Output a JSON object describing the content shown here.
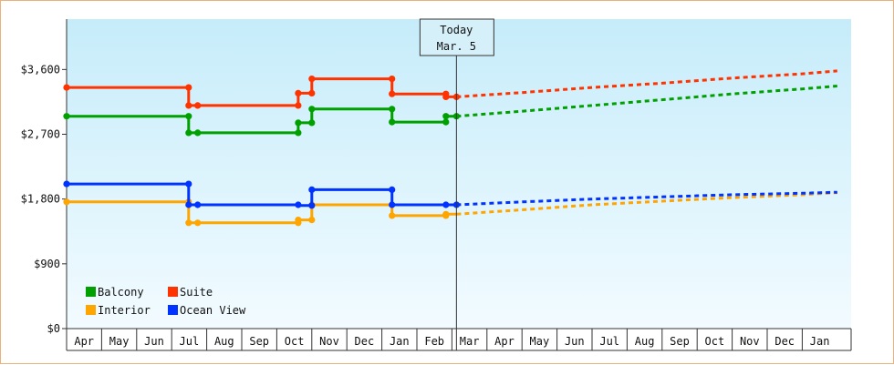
{
  "chart_data": {
    "type": "line",
    "title": "",
    "xlabel": "",
    "ylabel": "",
    "ylim": [
      0,
      4300
    ],
    "yticks": [
      0,
      900,
      1800,
      2700,
      3600
    ],
    "ytick_labels": [
      "$0",
      "$900",
      "$1,800",
      "$2,700",
      "$3,600"
    ],
    "x_start": "2023-04-01",
    "x_end": "2025-02-01",
    "month_labels": [
      "Apr",
      "May",
      "Jun",
      "Jul",
      "Aug",
      "Sep",
      "Oct",
      "Nov",
      "Dec",
      "Jan",
      "Feb",
      "Mar",
      "Apr",
      "May",
      "Jun",
      "Jul",
      "Aug",
      "Sep",
      "Oct",
      "Nov",
      "Dec",
      "Jan"
    ],
    "today": {
      "label_line1": "Today",
      "label_line2": "Mar. 5",
      "date": "2024-03-05"
    },
    "legend_position": "bottom-left",
    "background": "light sky-blue gradient",
    "series": [
      {
        "name": "Balcony",
        "color": "#00a000",
        "history": [
          [
            "2023-04-01",
            2950
          ],
          [
            "2023-07-16",
            2950
          ],
          [
            "2023-07-16",
            2720
          ],
          [
            "2023-07-24",
            2720
          ],
          [
            "2023-10-20",
            2720
          ],
          [
            "2023-10-20",
            2860
          ],
          [
            "2023-11-01",
            2860
          ],
          [
            "2023-11-01",
            3050
          ],
          [
            "2024-01-10",
            3050
          ],
          [
            "2024-01-10",
            2870
          ],
          [
            "2024-02-25",
            2870
          ],
          [
            "2024-02-25",
            2950
          ],
          [
            "2024-03-05",
            2950
          ]
        ],
        "markers": [
          [
            "2023-04-01",
            2950
          ],
          [
            "2023-07-16",
            2950
          ],
          [
            "2023-07-16",
            2720
          ],
          [
            "2023-07-24",
            2720
          ],
          [
            "2023-10-20",
            2720
          ],
          [
            "2023-10-20",
            2860
          ],
          [
            "2023-11-01",
            2860
          ],
          [
            "2023-11-01",
            3050
          ],
          [
            "2024-01-10",
            3050
          ],
          [
            "2024-01-10",
            2870
          ],
          [
            "2024-02-25",
            2870
          ],
          [
            "2024-02-25",
            2950
          ],
          [
            "2024-03-05",
            2950
          ]
        ],
        "forecast": [
          [
            "2024-03-05",
            2950
          ],
          [
            "2024-05-01",
            3020
          ],
          [
            "2024-07-01",
            3100
          ],
          [
            "2024-09-01",
            3180
          ],
          [
            "2024-11-01",
            3260
          ],
          [
            "2025-01-01",
            3330
          ],
          [
            "2025-02-01",
            3370
          ]
        ]
      },
      {
        "name": "Suite",
        "color": "#ff3300",
        "history": [
          [
            "2023-04-01",
            3350
          ],
          [
            "2023-07-16",
            3350
          ],
          [
            "2023-07-16",
            3100
          ],
          [
            "2023-07-24",
            3100
          ],
          [
            "2023-10-20",
            3100
          ],
          [
            "2023-10-20",
            3270
          ],
          [
            "2023-11-01",
            3270
          ],
          [
            "2023-11-01",
            3470
          ],
          [
            "2024-01-10",
            3470
          ],
          [
            "2024-01-10",
            3260
          ],
          [
            "2024-02-25",
            3260
          ],
          [
            "2024-02-25",
            3220
          ],
          [
            "2024-03-05",
            3220
          ]
        ],
        "markers": [
          [
            "2023-04-01",
            3350
          ],
          [
            "2023-07-16",
            3350
          ],
          [
            "2023-07-16",
            3100
          ],
          [
            "2023-07-24",
            3100
          ],
          [
            "2023-10-20",
            3100
          ],
          [
            "2023-10-20",
            3270
          ],
          [
            "2023-11-01",
            3270
          ],
          [
            "2023-11-01",
            3470
          ],
          [
            "2024-01-10",
            3470
          ],
          [
            "2024-01-10",
            3260
          ],
          [
            "2024-02-25",
            3260
          ],
          [
            "2024-02-25",
            3220
          ],
          [
            "2024-03-05",
            3220
          ]
        ],
        "forecast": [
          [
            "2024-03-05",
            3220
          ],
          [
            "2024-05-01",
            3280
          ],
          [
            "2024-07-01",
            3350
          ],
          [
            "2024-09-01",
            3410
          ],
          [
            "2024-11-01",
            3480
          ],
          [
            "2025-01-01",
            3540
          ],
          [
            "2025-02-01",
            3580
          ]
        ]
      },
      {
        "name": "Interior",
        "color": "#ffa500",
        "history": [
          [
            "2023-04-01",
            1760
          ],
          [
            "2023-07-16",
            1760
          ],
          [
            "2023-07-16",
            1470
          ],
          [
            "2023-07-24",
            1470
          ],
          [
            "2023-10-20",
            1470
          ],
          [
            "2023-10-20",
            1510
          ],
          [
            "2023-11-01",
            1510
          ],
          [
            "2023-11-01",
            1720
          ],
          [
            "2024-01-10",
            1720
          ],
          [
            "2024-01-10",
            1570
          ],
          [
            "2024-02-25",
            1570
          ],
          [
            "2024-02-25",
            1590
          ],
          [
            "2024-03-05",
            1590
          ]
        ],
        "markers": [
          [
            "2023-04-01",
            1760
          ],
          [
            "2023-07-16",
            1760
          ],
          [
            "2023-07-16",
            1470
          ],
          [
            "2023-07-24",
            1470
          ],
          [
            "2023-10-20",
            1470
          ],
          [
            "2023-10-20",
            1510
          ],
          [
            "2023-11-01",
            1510
          ],
          [
            "2023-11-01",
            1720
          ],
          [
            "2024-01-10",
            1720
          ],
          [
            "2024-01-10",
            1570
          ],
          [
            "2024-02-25",
            1570
          ],
          [
            "2024-02-25",
            1590
          ]
        ],
        "forecast": [
          [
            "2024-03-05",
            1590
          ],
          [
            "2024-05-01",
            1650
          ],
          [
            "2024-07-01",
            1720
          ],
          [
            "2024-09-01",
            1770
          ],
          [
            "2024-11-01",
            1820
          ],
          [
            "2025-01-01",
            1860
          ],
          [
            "2025-02-01",
            1890
          ]
        ]
      },
      {
        "name": "Ocean View",
        "color": "#0033ff",
        "history": [
          [
            "2023-04-01",
            2010
          ],
          [
            "2023-07-16",
            2010
          ],
          [
            "2023-07-16",
            1720
          ],
          [
            "2023-07-24",
            1720
          ],
          [
            "2023-10-20",
            1720
          ],
          [
            "2023-10-20",
            1710
          ],
          [
            "2023-11-01",
            1710
          ],
          [
            "2023-11-01",
            1930
          ],
          [
            "2024-01-10",
            1930
          ],
          [
            "2024-01-10",
            1720
          ],
          [
            "2024-02-25",
            1720
          ],
          [
            "2024-02-25",
            1720
          ],
          [
            "2024-03-05",
            1720
          ]
        ],
        "markers": [
          [
            "2023-04-01",
            2010
          ],
          [
            "2023-07-16",
            2010
          ],
          [
            "2023-07-16",
            1720
          ],
          [
            "2023-07-24",
            1720
          ],
          [
            "2023-10-20",
            1720
          ],
          [
            "2023-11-01",
            1710
          ],
          [
            "2023-11-01",
            1930
          ],
          [
            "2024-01-10",
            1930
          ],
          [
            "2024-01-10",
            1720
          ],
          [
            "2024-02-25",
            1720
          ],
          [
            "2024-03-05",
            1720
          ]
        ],
        "forecast": [
          [
            "2024-03-05",
            1720
          ],
          [
            "2024-05-01",
            1760
          ],
          [
            "2024-07-01",
            1800
          ],
          [
            "2024-09-01",
            1830
          ],
          [
            "2024-11-01",
            1860
          ],
          [
            "2025-01-01",
            1880
          ],
          [
            "2025-02-01",
            1895
          ]
        ]
      }
    ]
  }
}
